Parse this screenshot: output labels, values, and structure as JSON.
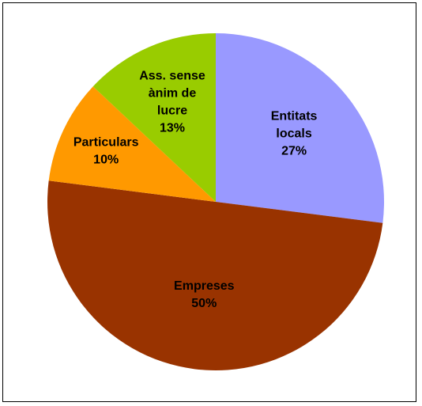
{
  "chart_data": {
    "type": "pie",
    "title": "",
    "slices": [
      {
        "lines": [
          "Entitats",
          "locals"
        ],
        "percent_label": "27%",
        "value": 27,
        "color": "#9999ff"
      },
      {
        "lines": [
          "Empreses"
        ],
        "percent_label": "50%",
        "value": 50,
        "color": "#993300"
      },
      {
        "lines": [
          "Particulars"
        ],
        "percent_label": "10%",
        "value": 10,
        "color": "#ff9900"
      },
      {
        "lines": [
          "Ass. sense",
          "ànim de",
          "lucre"
        ],
        "percent_label": "13%",
        "value": 13,
        "color": "#99cc00"
      }
    ],
    "legend": "none"
  }
}
